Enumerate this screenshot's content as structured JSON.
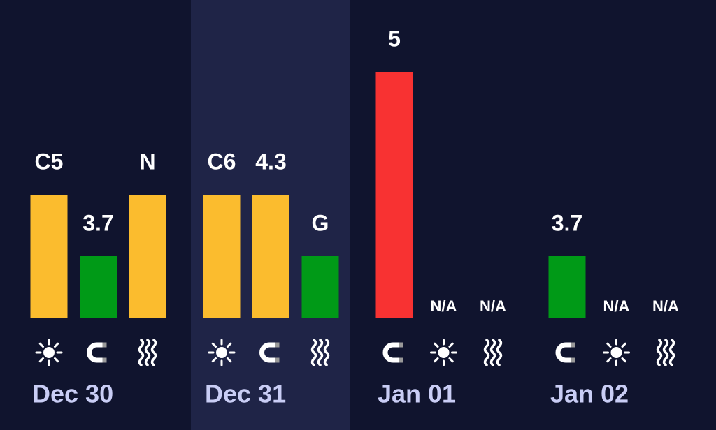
{
  "days": [
    {
      "date": "Dec 30",
      "items": [
        {
          "label": "C5",
          "color": "#fbbc2e",
          "icon": "sun"
        },
        {
          "label": "3.7",
          "color": "#009a17",
          "icon": "magnet"
        },
        {
          "label": "N",
          "color": "#fbbc2e",
          "icon": "waves"
        }
      ]
    },
    {
      "date": "Dec 31",
      "highlighted": true,
      "items": [
        {
          "label": "C6",
          "color": "#fbbc2e",
          "icon": "sun"
        },
        {
          "label": "4.3",
          "color": "#fbbc2e",
          "icon": "magnet"
        },
        {
          "label": "G",
          "color": "#009a17",
          "icon": "waves"
        }
      ]
    },
    {
      "date": "Jan 01",
      "items": [
        {
          "label": "5",
          "color": "#f83232",
          "icon": "magnet"
        },
        {
          "label": "N/A",
          "icon": "sun"
        },
        {
          "label": "N/A",
          "icon": "waves"
        }
      ]
    },
    {
      "date": "Jan 02",
      "items": [
        {
          "label": "3.7",
          "color": "#009a17",
          "icon": "magnet"
        },
        {
          "label": "N/A",
          "icon": "sun"
        },
        {
          "label": "N/A",
          "icon": "waves"
        }
      ]
    }
  ]
}
